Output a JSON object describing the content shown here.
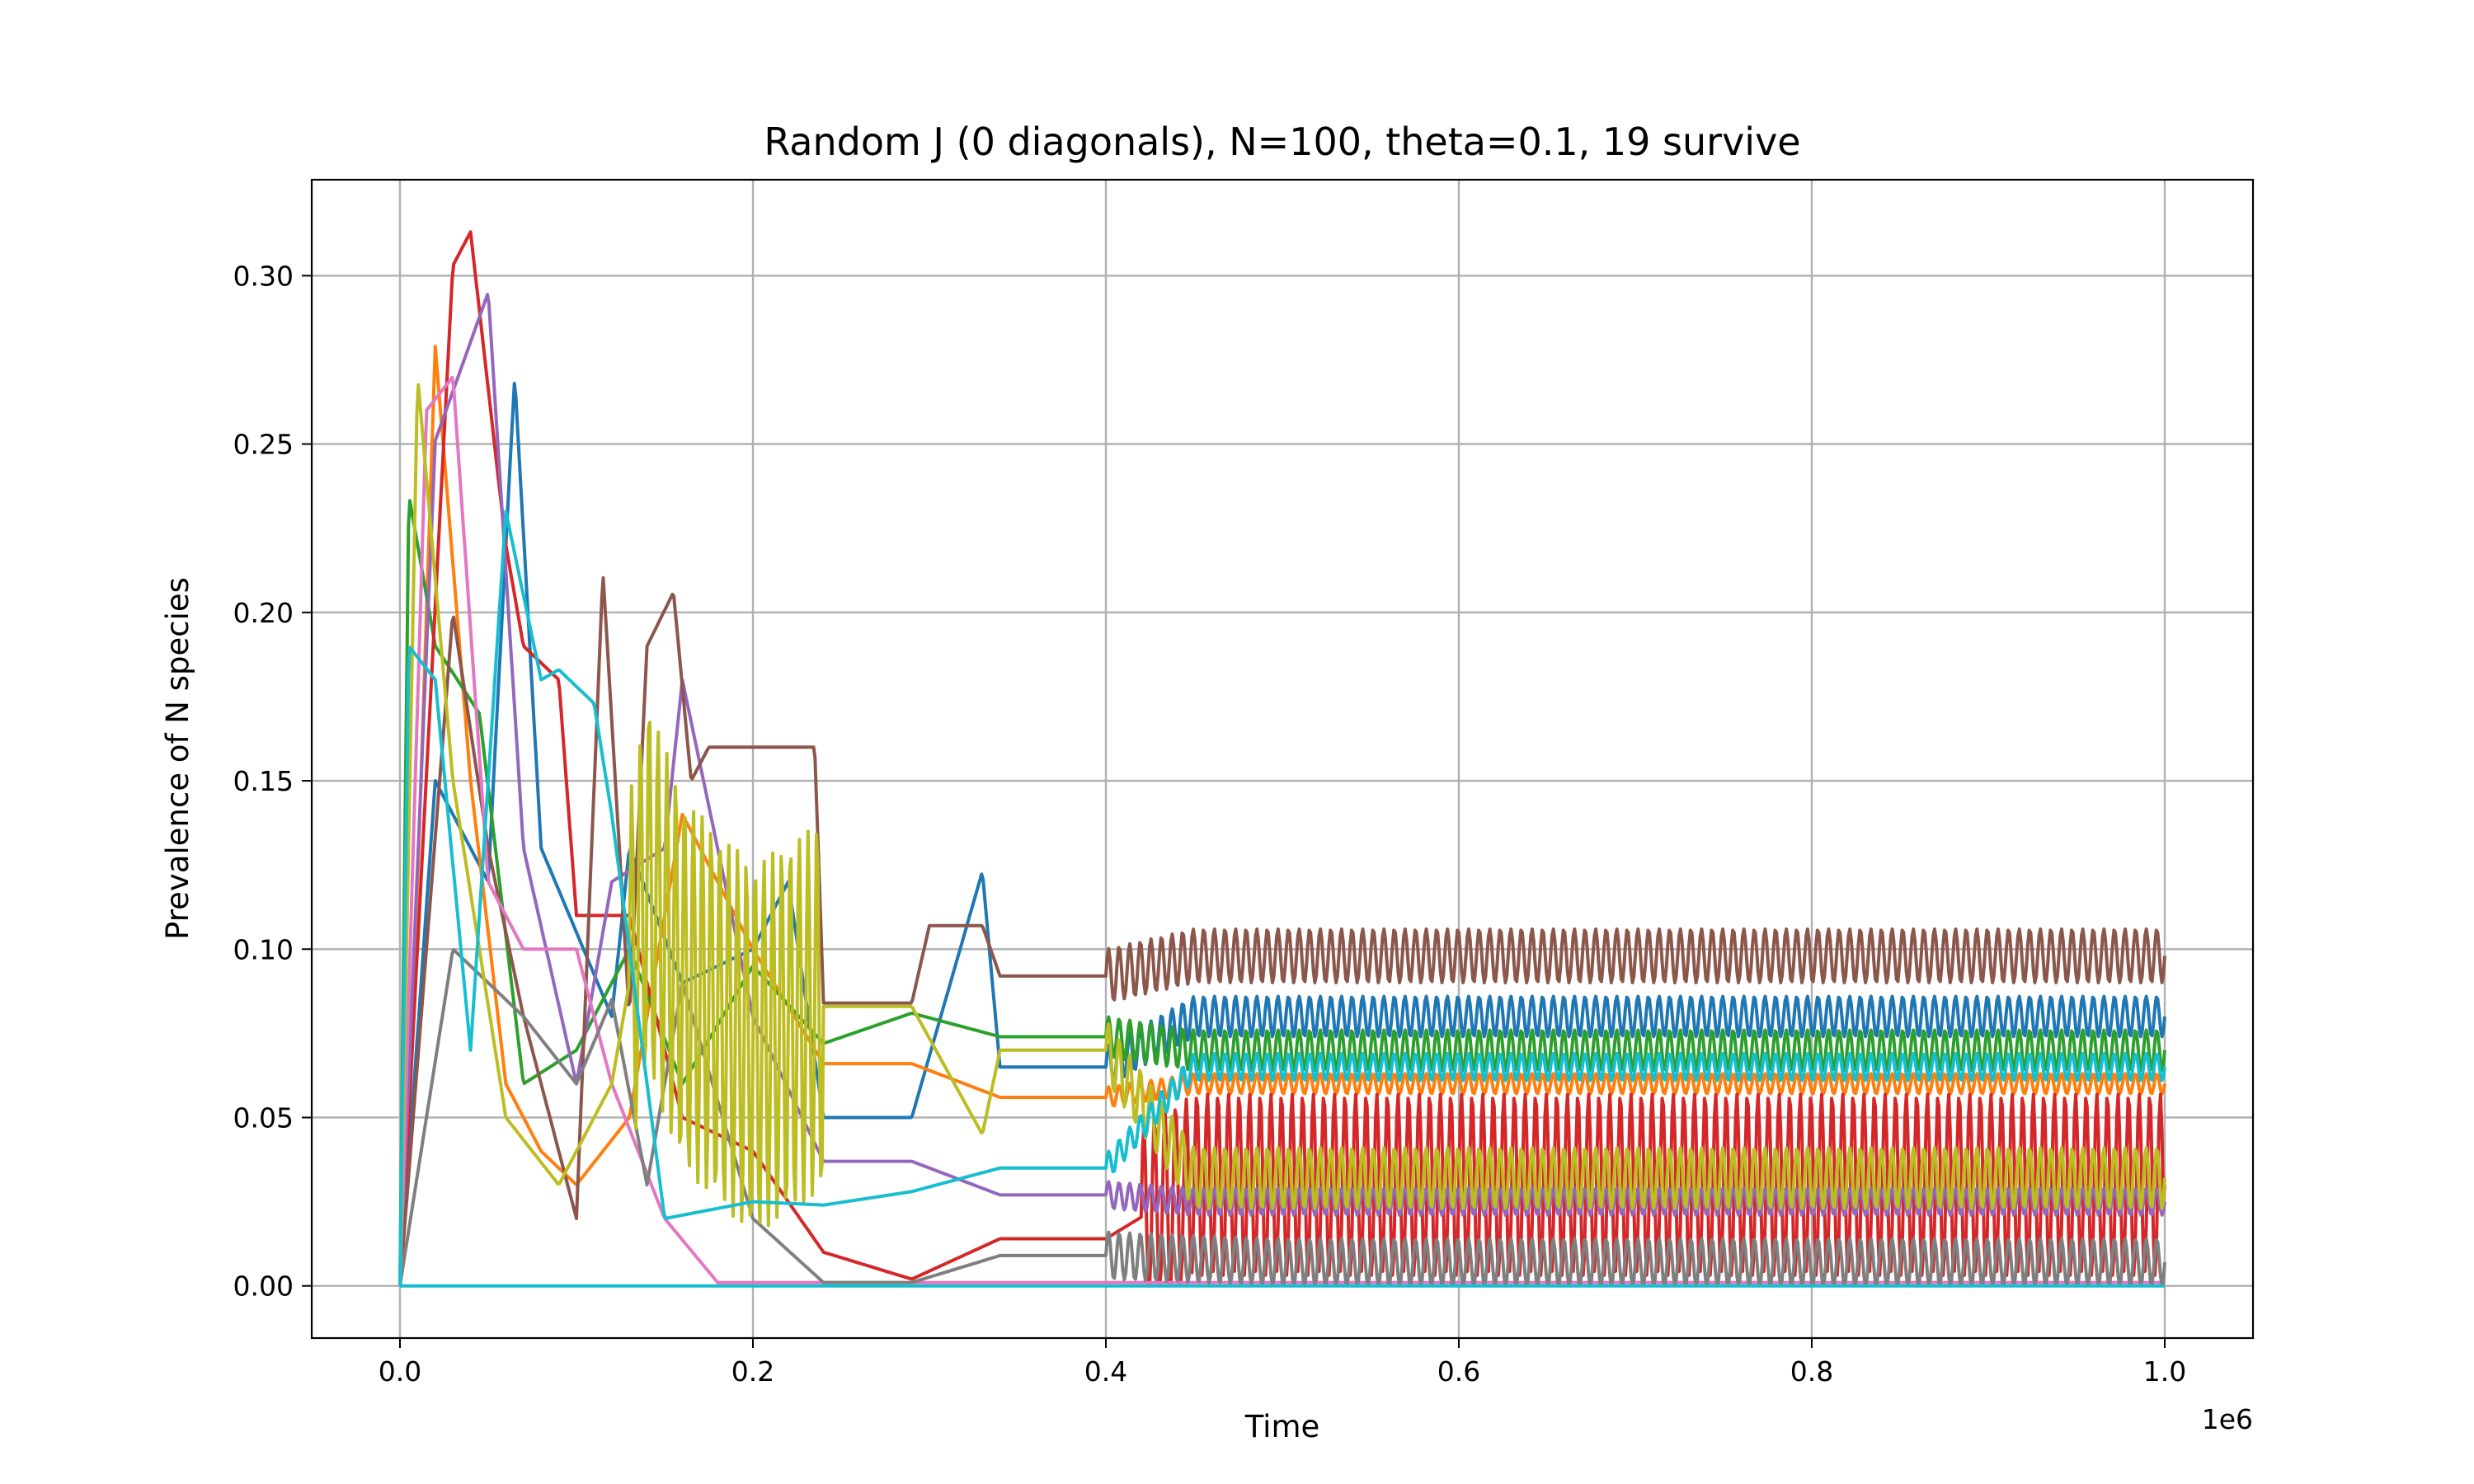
{
  "chart_data": {
    "type": "line",
    "title": "Random J (0 diagonals), N=100, theta=0.1, 19 survive",
    "xlabel": "Time",
    "ylabel": "Prevalence of N species",
    "x_offset_label": "1e6",
    "xlim": [
      -0.05,
      1.05
    ],
    "ylim": [
      -0.0155,
      0.3285
    ],
    "xticks": [
      0.0,
      0.2,
      0.4,
      0.6,
      0.8,
      1.0
    ],
    "xtick_labels": [
      "0.0",
      "0.2",
      "0.4",
      "0.6",
      "0.8",
      "1.0"
    ],
    "yticks": [
      0.0,
      0.05,
      0.1,
      0.15,
      0.2,
      0.25,
      0.3
    ],
    "ytick_labels": [
      "0.00",
      "0.05",
      "0.10",
      "0.15",
      "0.20",
      "0.25",
      "0.30"
    ],
    "grid": true,
    "legend": "none",
    "colors": {
      "blue": "#1f77b4",
      "orange": "#ff7f0e",
      "green": "#2ca02c",
      "red": "#d62728",
      "purple": "#9467bd",
      "brown": "#8c564b",
      "pink": "#e377c2",
      "gray": "#7f7f7f",
      "olive": "#bcbd22",
      "cyan": "#17becf"
    },
    "series": [
      {
        "color": "#1f77b4",
        "x": [
          0,
          0.02,
          0.05,
          0.065,
          0.08,
          0.12,
          0.13,
          0.16,
          0.2,
          0.22,
          0.24,
          0.29,
          0.33,
          0.34,
          0.4,
          0.45,
          0.5,
          1.0
        ],
        "y": [
          0,
          0.15,
          0.12,
          0.27,
          0.13,
          0.08,
          0.13,
          0.09,
          0.1,
          0.12,
          0.05,
          0.05,
          0.123,
          0.065,
          0.065,
          0.08,
          0.08,
          0.08
        ],
        "osc": {
          "from": 0.4,
          "to": 1.0,
          "period": 0.006,
          "amp": 0.006
        }
      },
      {
        "color": "#ff7f0e",
        "x": [
          0,
          0.01,
          0.02,
          0.04,
          0.06,
          0.08,
          0.1,
          0.13,
          0.16,
          0.2,
          0.24,
          0.29,
          0.34,
          0.4,
          0.45,
          1.0
        ],
        "y": [
          0,
          0.12,
          0.279,
          0.15,
          0.06,
          0.04,
          0.03,
          0.05,
          0.14,
          0.1,
          0.066,
          0.066,
          0.056,
          0.056,
          0.06,
          0.06
        ],
        "osc": {
          "from": 0.4,
          "to": 1.0,
          "period": 0.006,
          "amp": 0.003
        }
      },
      {
        "color": "#2ca02c",
        "x": [
          0,
          0.005,
          0.02,
          0.045,
          0.07,
          0.1,
          0.13,
          0.16,
          0.2,
          0.24,
          0.29,
          0.34,
          0.4,
          0.45,
          1.0
        ],
        "y": [
          0,
          0.235,
          0.19,
          0.17,
          0.06,
          0.07,
          0.1,
          0.06,
          0.095,
          0.072,
          0.081,
          0.074,
          0.074,
          0.07,
          0.07
        ],
        "osc": {
          "from": 0.4,
          "to": 1.0,
          "period": 0.006,
          "amp": 0.006
        }
      },
      {
        "color": "#d62728",
        "x": [
          0,
          0.03,
          0.04,
          0.06,
          0.07,
          0.09,
          0.1,
          0.13,
          0.16,
          0.2,
          0.24,
          0.29,
          0.34,
          0.4,
          0.45,
          1.0
        ],
        "y": [
          0,
          0.303,
          0.313,
          0.22,
          0.19,
          0.18,
          0.11,
          0.11,
          0.05,
          0.04,
          0.01,
          0.002,
          0.014,
          0.014,
          0.03,
          0.03
        ],
        "osc": {
          "from": 0.42,
          "to": 1.0,
          "period": 0.006,
          "amp": 0.027
        }
      },
      {
        "color": "#9467bd",
        "x": [
          0,
          0.02,
          0.05,
          0.07,
          0.1,
          0.12,
          0.15,
          0.16,
          0.2,
          0.24,
          0.29,
          0.34,
          0.4,
          0.45,
          1.0
        ],
        "y": [
          0,
          0.251,
          0.295,
          0.13,
          0.06,
          0.12,
          0.13,
          0.18,
          0.08,
          0.037,
          0.037,
          0.027,
          0.027,
          0.025,
          0.025
        ],
        "osc": {
          "from": 0.4,
          "to": 1.0,
          "period": 0.006,
          "amp": 0.004
        }
      },
      {
        "color": "#8c564b",
        "x": [
          0,
          0.03,
          0.05,
          0.07,
          0.1,
          0.115,
          0.13,
          0.14,
          0.155,
          0.165,
          0.175,
          0.235,
          0.24,
          0.29,
          0.3,
          0.33,
          0.34,
          0.4,
          0.45,
          0.5,
          1.0
        ],
        "y": [
          0,
          0.2,
          0.13,
          0.08,
          0.02,
          0.212,
          0.08,
          0.19,
          0.206,
          0.15,
          0.16,
          0.16,
          0.084,
          0.084,
          0.107,
          0.107,
          0.092,
          0.092,
          0.098,
          0.098,
          0.098
        ],
        "osc": {
          "from": 0.4,
          "to": 1.0,
          "period": 0.006,
          "amp": 0.008
        }
      },
      {
        "color": "#e377c2",
        "x": [
          0,
          0.015,
          0.03,
          0.05,
          0.07,
          0.09,
          0.1,
          0.12,
          0.15,
          0.18,
          0.24,
          0.4,
          1.0
        ],
        "y": [
          0,
          0.26,
          0.27,
          0.12,
          0.1,
          0.1,
          0.1,
          0.06,
          0.02,
          0.001,
          0.001,
          0.001,
          0.001
        ]
      },
      {
        "color": "#7f7f7f",
        "x": [
          0,
          0.03,
          0.07,
          0.1,
          0.12,
          0.14,
          0.16,
          0.2,
          0.24,
          0.29,
          0.34,
          0.4,
          0.5,
          1.0
        ],
        "y": [
          0,
          0.1,
          0.08,
          0.06,
          0.085,
          0.03,
          0.09,
          0.02,
          0.001,
          0.001,
          0.009,
          0.009,
          0.007,
          0.007
        ],
        "osc": {
          "from": 0.4,
          "to": 1.0,
          "period": 0.006,
          "amp": 0.007
        }
      },
      {
        "color": "#bcbd22",
        "x": [
          0,
          0.01,
          0.03,
          0.06,
          0.09,
          0.12,
          0.14,
          0.16,
          0.2,
          0.24,
          0.29,
          0.33,
          0.34,
          0.4,
          0.45,
          1.0
        ],
        "y": [
          0,
          0.27,
          0.15,
          0.05,
          0.03,
          0.06,
          0.12,
          0.09,
          0.07,
          0.083,
          0.083,
          0.045,
          0.07,
          0.07,
          0.032,
          0.032
        ],
        "osc": {
          "from": 0.13,
          "to": 0.24,
          "period": 0.005,
          "amp": 0.055,
          "tail": {
            "from": 0.4,
            "to": 1.0,
            "period": 0.006,
            "amp": 0.009
          }
        }
      },
      {
        "color": "#17becf",
        "x": [
          0,
          0.005,
          0.02,
          0.04,
          0.06,
          0.08,
          0.09,
          0.11,
          0.12,
          0.15,
          0.2,
          0.24,
          0.29,
          0.34,
          0.4,
          0.45,
          1.0
        ],
        "y": [
          0,
          0.19,
          0.18,
          0.07,
          0.23,
          0.18,
          0.183,
          0.173,
          0.14,
          0.02,
          0.025,
          0.024,
          0.028,
          0.035,
          0.035,
          0.065,
          0.065
        ],
        "osc": {
          "from": 0.4,
          "to": 1.0,
          "period": 0.006,
          "amp": 0.004
        }
      },
      {
        "color": "#17becf",
        "x": [
          0,
          0.1,
          0.2,
          0.4,
          0.6,
          0.8,
          1.0
        ],
        "y": [
          0,
          0,
          0,
          0,
          0,
          0,
          0
        ]
      }
    ]
  }
}
